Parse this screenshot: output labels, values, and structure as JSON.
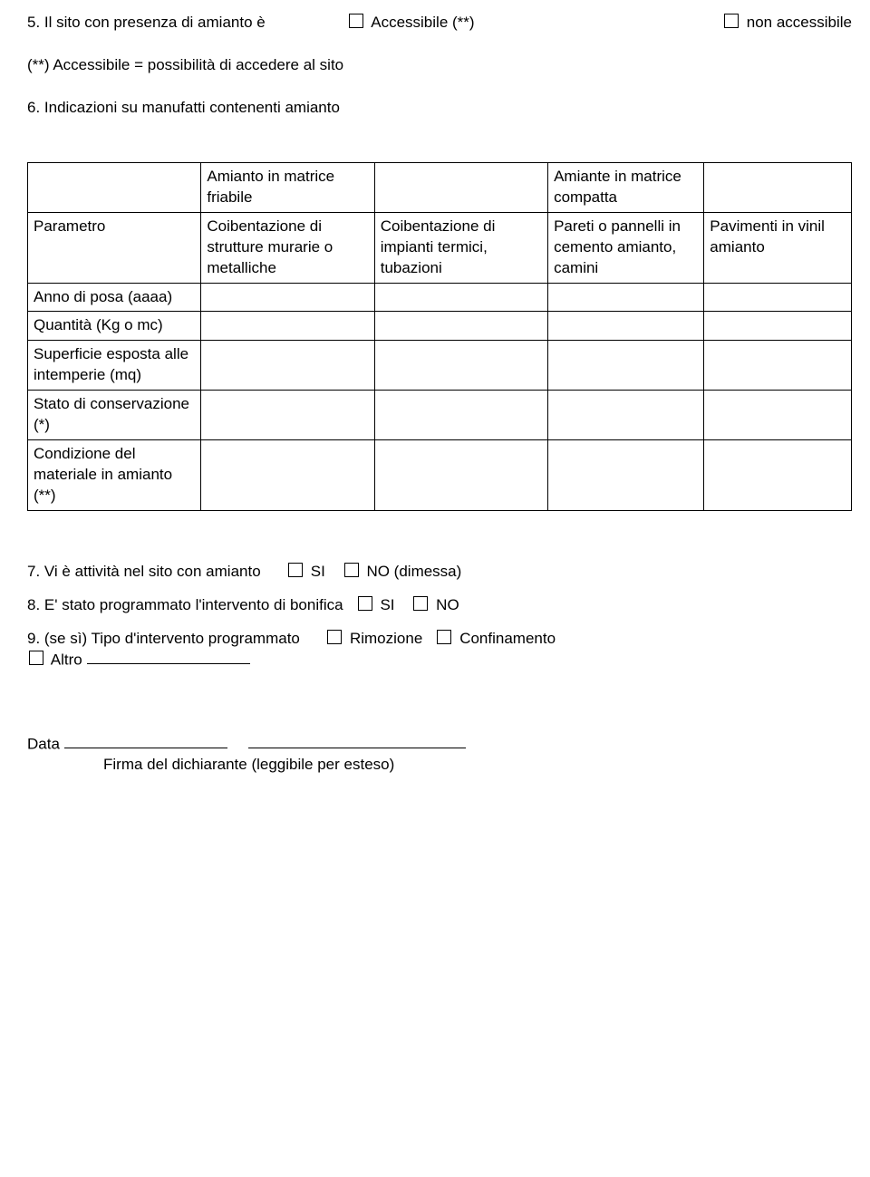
{
  "item5": {
    "label": "5. Il sito con presenza di amianto è",
    "opt_accessibile": "Accessibile (**)",
    "opt_non_accessibile": "non accessibile",
    "note": "(**) Accessibile = possibilità di accedere al sito"
  },
  "item6": {
    "label": "6. Indicazioni su manufatti contenenti amianto"
  },
  "table": {
    "hdr_friabile": "Amianto in matrice friabile",
    "hdr_compatta": "Amiante in matrice compatta",
    "parametro": "Parametro",
    "col2": "Coibentazione di strutture murarie o metalliche",
    "col3": "Coibentazione di impianti termici, tubazioni",
    "col4": "Pareti o pannelli in cemento amianto, camini",
    "col5": "Pavimenti in vinil amianto",
    "anno": "Anno di posa (aaaa)",
    "quantita": "Quantità (Kg o mc)",
    "superficie": "Superficie esposta alle intemperie (mq)",
    "stato": "Stato di conservazione (*)",
    "condizione": "Condizione del materiale in amianto (**)"
  },
  "item7": {
    "label": "7. Vi è attività nel sito con amianto",
    "si": "SI",
    "no": "NO (dimessa)"
  },
  "item8": {
    "label": "8. E' stato programmato l'intervento di bonifica",
    "si": "SI",
    "no": "NO"
  },
  "item9": {
    "label": "9. (se sì) Tipo d'intervento programmato",
    "rimozione": "Rimozione",
    "confinamento": "Confinamento",
    "altro": "Altro"
  },
  "footer": {
    "data": "Data",
    "firma": "Firma del dichiarante (leggibile per esteso)"
  }
}
